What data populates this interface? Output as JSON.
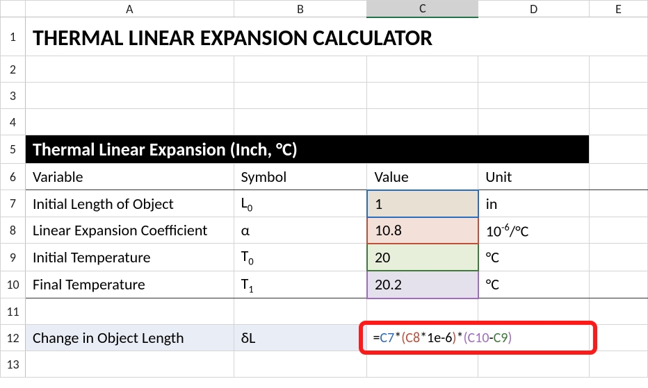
{
  "columns": [
    "A",
    "B",
    "C",
    "D",
    "E"
  ],
  "rows": [
    "1",
    "2",
    "3",
    "4",
    "5",
    "6",
    "7",
    "8",
    "9",
    "10",
    "11",
    "12",
    "13"
  ],
  "title": "THERMAL LINEAR EXPANSION CALCULATOR",
  "section_header": "Thermal Linear Expansion (Inch, °C)",
  "table": {
    "headers": {
      "A": "Variable",
      "B": "Symbol",
      "C": "Value",
      "D": "Unit"
    },
    "rows": [
      {
        "variable": "Initial Length of Object",
        "symbol": "L",
        "sub": "0",
        "value": "1",
        "unit": "in",
        "hl": "blue"
      },
      {
        "variable": "Linear Expansion Coefficient",
        "symbol": "α",
        "sub": "",
        "value": "10.8",
        "unit_base": "10",
        "unit_sup": "-6",
        "unit_suffix": "/°C",
        "hl": "red"
      },
      {
        "variable": "Initial Temperature",
        "symbol": "T",
        "sub": "0",
        "value": "20",
        "unit": "°C",
        "hl": "green"
      },
      {
        "variable": "Final Temperature",
        "symbol": "T",
        "sub": "1",
        "value": "20.2",
        "unit": "°C",
        "hl": "purple"
      }
    ],
    "result": {
      "variable": "Change in Object Length",
      "symbol": "δL",
      "formula_parts": [
        {
          "t": "=",
          "c": "fx-eq"
        },
        {
          "t": "C7",
          "c": "c-blue"
        },
        {
          "t": "*",
          "c": "fx-eq"
        },
        {
          "t": "(",
          "c": "c-red"
        },
        {
          "t": "C8",
          "c": "c-red"
        },
        {
          "t": "*1e-6",
          "c": "fx-eq"
        },
        {
          "t": ")",
          "c": "c-red"
        },
        {
          "t": "*",
          "c": "fx-eq"
        },
        {
          "t": "(",
          "c": "c-purple"
        },
        {
          "t": "C10",
          "c": "c-purple"
        },
        {
          "t": "-",
          "c": "fx-eq"
        },
        {
          "t": "C9",
          "c": "c-green"
        },
        {
          "t": ")",
          "c": "c-purple"
        }
      ]
    }
  },
  "selected_column": "C",
  "colors": {
    "ring": "#ff1a1a",
    "blue": "#2a6dbf",
    "red": "#c04f3a",
    "green": "#3e7a3a",
    "purple": "#a26bc2",
    "section_bg": "#000000",
    "section_fg": "#ffffff"
  }
}
